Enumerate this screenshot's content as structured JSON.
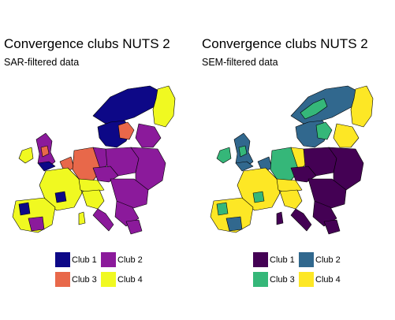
{
  "panels": [
    {
      "title": "Convergence clubs NUTS 2",
      "subtitle": "SAR-filtered data",
      "legend": [
        {
          "label": "Club 1",
          "color": "#0d0887"
        },
        {
          "label": "Club 2",
          "color": "#8b1a9b"
        },
        {
          "label": "Club 3",
          "color": "#e8684a"
        },
        {
          "label": "Club 4",
          "color": "#f0f921"
        }
      ]
    },
    {
      "title": "Convergence clubs NUTS 2",
      "subtitle": "SEM-filtered data",
      "legend": [
        {
          "label": "Club 1",
          "color": "#440154"
        },
        {
          "label": "Club 2",
          "color": "#31688e"
        },
        {
          "label": "Club 3",
          "color": "#35b779"
        },
        {
          "label": "Club 4",
          "color": "#fde725"
        }
      ]
    }
  ]
}
